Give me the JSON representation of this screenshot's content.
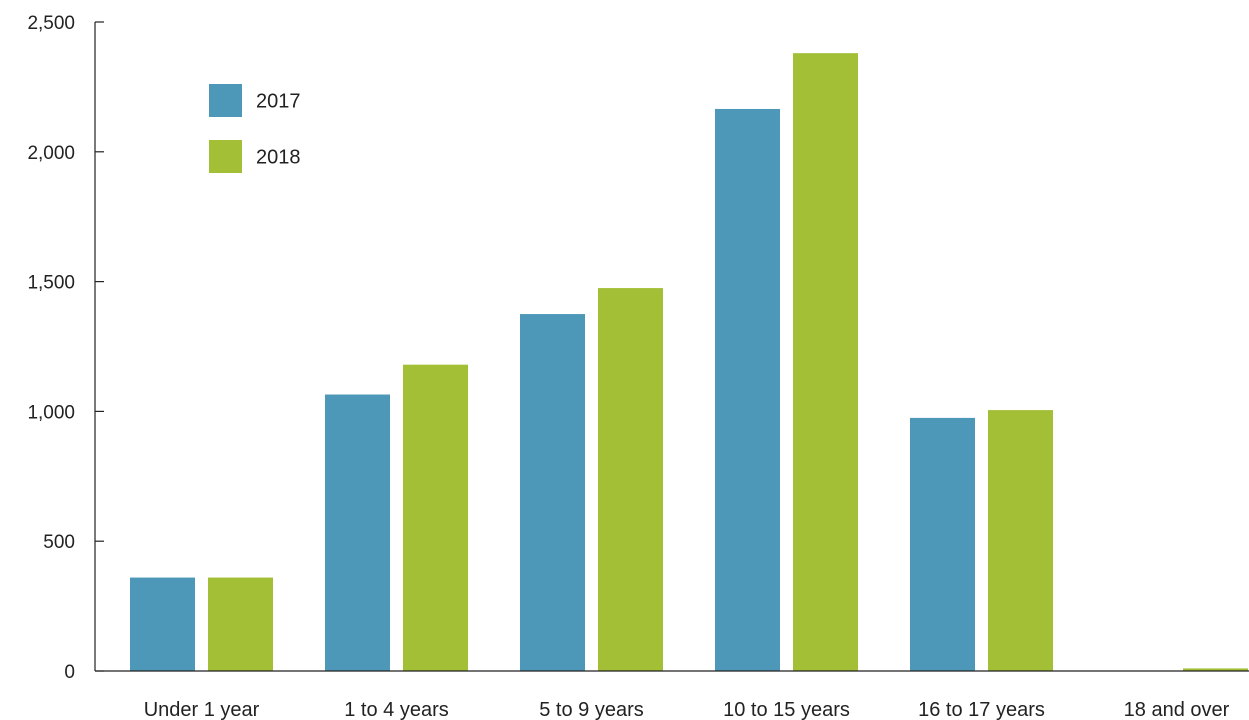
{
  "chart_data": {
    "type": "bar",
    "title": "",
    "xlabel": "",
    "ylabel": "",
    "ylim": [
      0,
      2500
    ],
    "yticks": [
      0,
      500,
      1000,
      1500,
      2000,
      2500
    ],
    "ytick_labels": [
      "0",
      "500",
      "1,000",
      "1,500",
      "2,000",
      "2,500"
    ],
    "categories": [
      "Under 1 year",
      "1 to 4 years",
      "5 to 9 years",
      "10 to 15 years",
      "16 to 17 years",
      "18 and over"
    ],
    "series": [
      {
        "name": "2017",
        "color": "#4d97b9",
        "values": [
          360,
          1065,
          1375,
          2165,
          975,
          0
        ]
      },
      {
        "name": "2018",
        "color": "#a3bf35",
        "values": [
          360,
          1180,
          1475,
          2380,
          1005,
          10
        ]
      }
    ],
    "legend_position": "top-left",
    "grid": false
  }
}
